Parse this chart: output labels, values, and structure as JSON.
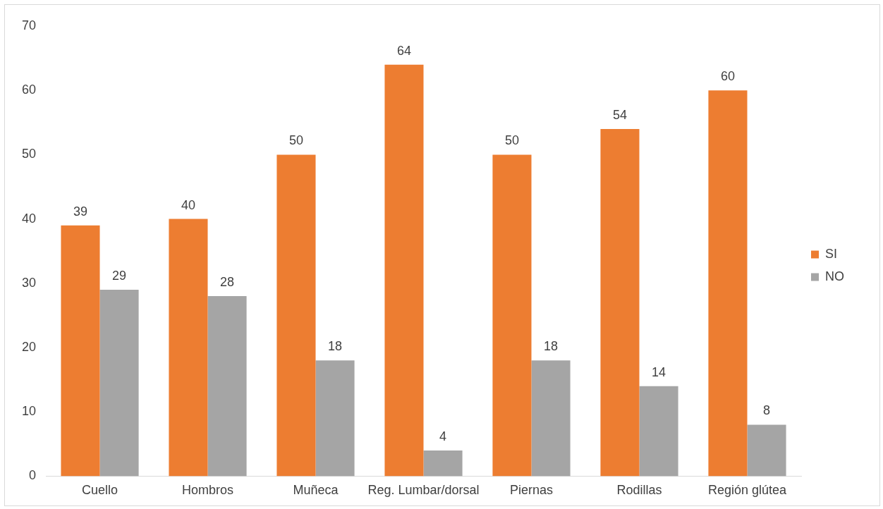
{
  "chart_data": {
    "type": "bar",
    "categories": [
      "Cuello",
      "Hombros",
      "Muñeca",
      "Reg. Lumbar/dorsal",
      "Piernas",
      "Rodillas",
      "Región glútea"
    ],
    "series": [
      {
        "name": "SI",
        "color": "#ed7d31",
        "values": [
          39,
          40,
          50,
          64,
          50,
          54,
          60
        ]
      },
      {
        "name": "NO",
        "color": "#a5a5a5",
        "values": [
          29,
          28,
          18,
          4,
          18,
          14,
          8
        ]
      }
    ],
    "ylim": [
      0,
      70
    ],
    "yticks": [
      0,
      10,
      20,
      30,
      40,
      50,
      60,
      70
    ],
    "grid": false,
    "legend": "right",
    "data_labels": true
  }
}
